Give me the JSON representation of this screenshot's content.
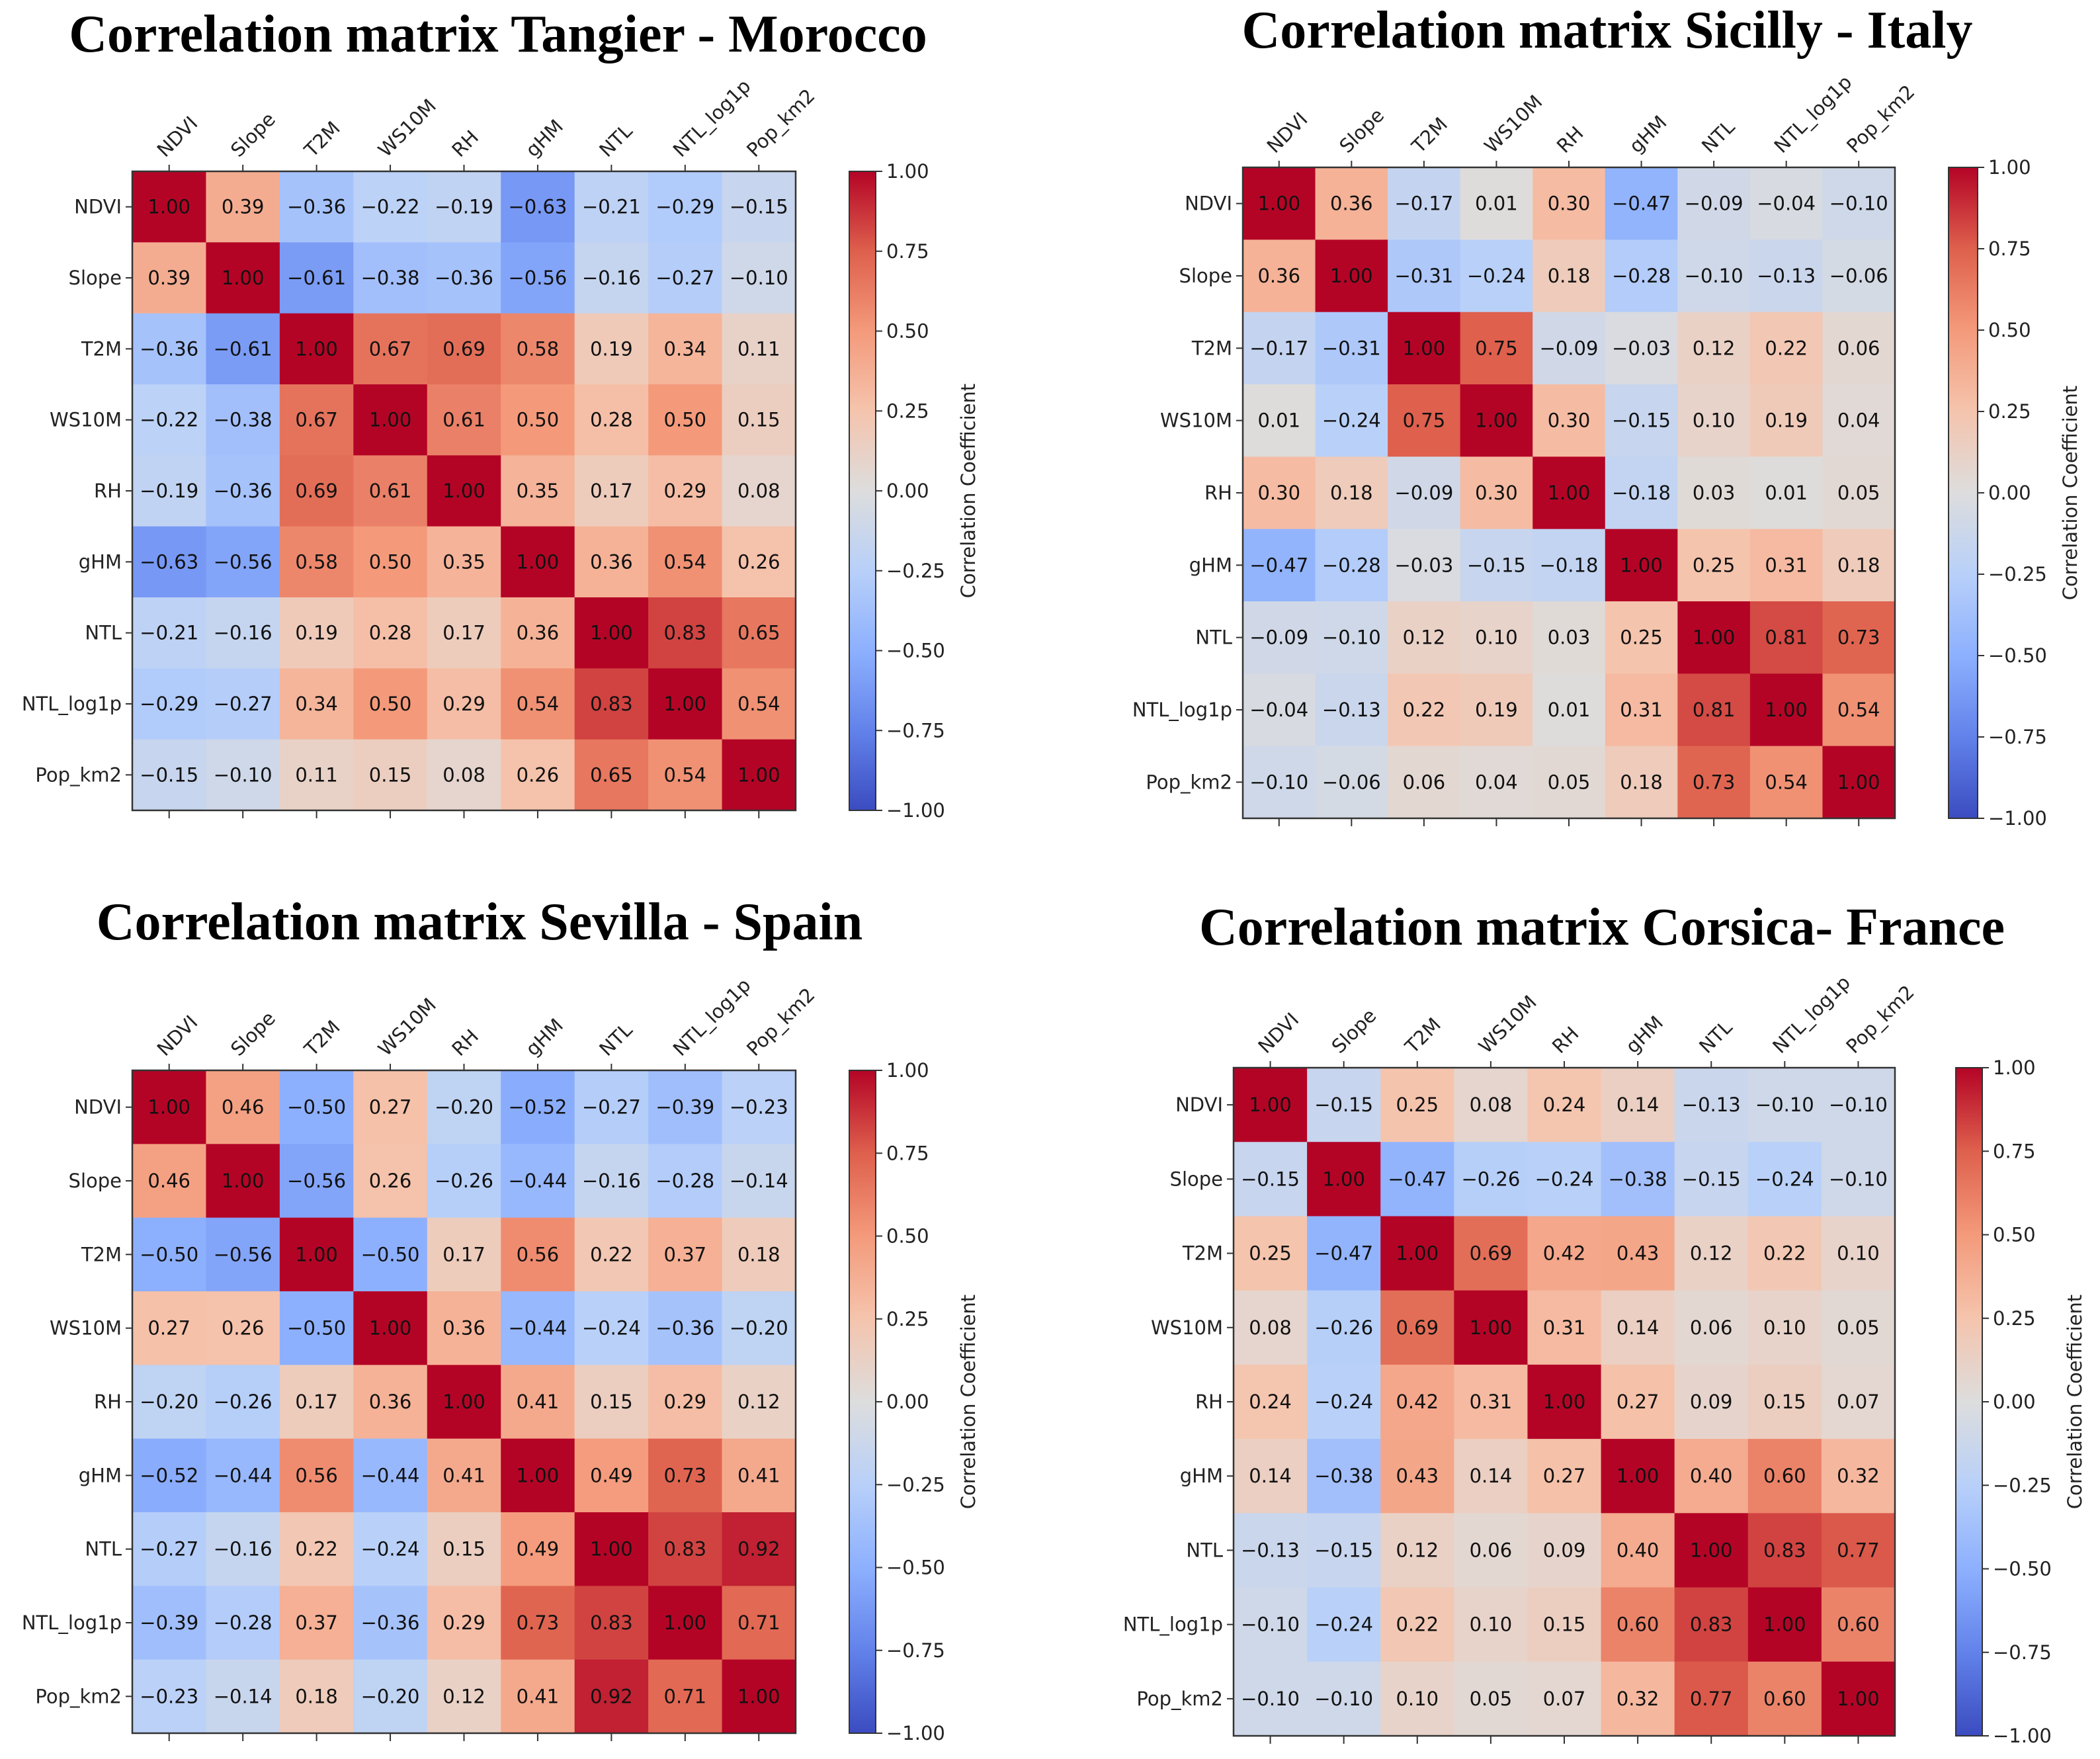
{
  "chart_data": [
    {
      "type": "heatmap",
      "title": "Correlation matrix Tangier - Morocco",
      "labels": [
        "NDVI",
        "Slope",
        "T2M",
        "WS10M",
        "RH",
        "gHM",
        "NTL",
        "NTL_log1p",
        "Pop_km2"
      ],
      "values": [
        [
          1.0,
          0.39,
          -0.36,
          -0.22,
          -0.19,
          -0.63,
          -0.21,
          -0.29,
          -0.15
        ],
        [
          0.39,
          1.0,
          -0.61,
          -0.38,
          -0.36,
          -0.56,
          -0.16,
          -0.27,
          -0.1
        ],
        [
          -0.36,
          -0.61,
          1.0,
          0.67,
          0.69,
          0.58,
          0.19,
          0.34,
          0.11
        ],
        [
          -0.22,
          -0.38,
          0.67,
          1.0,
          0.61,
          0.5,
          0.28,
          0.5,
          0.15
        ],
        [
          -0.19,
          -0.36,
          0.69,
          0.61,
          1.0,
          0.35,
          0.17,
          0.29,
          0.08
        ],
        [
          -0.63,
          -0.56,
          0.58,
          0.5,
          0.35,
          1.0,
          0.36,
          0.54,
          0.26
        ],
        [
          -0.21,
          -0.16,
          0.19,
          0.28,
          0.17,
          0.36,
          1.0,
          0.83,
          0.65
        ],
        [
          -0.29,
          -0.27,
          0.34,
          0.5,
          0.29,
          0.54,
          0.83,
          1.0,
          0.54
        ],
        [
          -0.15,
          -0.1,
          0.11,
          0.15,
          0.08,
          0.26,
          0.65,
          0.54,
          1.0
        ]
      ],
      "colorbar": {
        "label": "Correlation Coefficient",
        "range": [
          -1,
          1
        ],
        "ticks": [
          "1.00",
          "0.75",
          "0.50",
          "0.25",
          "0.00",
          "−0.25",
          "−0.50",
          "−0.75",
          "−1.00"
        ]
      },
      "colormap": "coolwarm"
    },
    {
      "type": "heatmap",
      "title": "Correlation matrix Sicilly - Italy",
      "labels": [
        "NDVI",
        "Slope",
        "T2M",
        "WS10M",
        "RH",
        "gHM",
        "NTL",
        "NTL_log1p",
        "Pop_km2"
      ],
      "values": [
        [
          1.0,
          0.36,
          -0.17,
          0.01,
          0.3,
          -0.47,
          -0.09,
          -0.04,
          -0.1
        ],
        [
          0.36,
          1.0,
          -0.31,
          -0.24,
          0.18,
          -0.28,
          -0.1,
          -0.13,
          -0.06
        ],
        [
          -0.17,
          -0.31,
          1.0,
          0.75,
          -0.09,
          -0.03,
          0.12,
          0.22,
          0.06
        ],
        [
          0.01,
          -0.24,
          0.75,
          1.0,
          0.3,
          -0.15,
          0.1,
          0.19,
          0.04
        ],
        [
          0.3,
          0.18,
          -0.09,
          0.3,
          1.0,
          -0.18,
          0.03,
          0.01,
          0.05
        ],
        [
          -0.47,
          -0.28,
          -0.03,
          -0.15,
          -0.18,
          1.0,
          0.25,
          0.31,
          0.18
        ],
        [
          -0.09,
          -0.1,
          0.12,
          0.1,
          0.03,
          0.25,
          1.0,
          0.81,
          0.73
        ],
        [
          -0.04,
          -0.13,
          0.22,
          0.19,
          0.01,
          0.31,
          0.81,
          1.0,
          0.54
        ],
        [
          -0.1,
          -0.06,
          0.06,
          0.04,
          0.05,
          0.18,
          0.73,
          0.54,
          1.0
        ]
      ],
      "colorbar": {
        "label": "Correlation Coefficient",
        "range": [
          -1,
          1
        ],
        "ticks": [
          "1.00",
          "0.75",
          "0.50",
          "0.25",
          "0.00",
          "−0.25",
          "−0.50",
          "−0.75",
          "−1.00"
        ]
      },
      "colormap": "coolwarm"
    },
    {
      "type": "heatmap",
      "title": "Correlation matrix Sevilla - Spain",
      "labels": [
        "NDVI",
        "Slope",
        "T2M",
        "WS10M",
        "RH",
        "gHM",
        "NTL",
        "NTL_log1p",
        "Pop_km2"
      ],
      "values": [
        [
          1.0,
          0.46,
          -0.5,
          0.27,
          -0.2,
          -0.52,
          -0.27,
          -0.39,
          -0.23
        ],
        [
          0.46,
          1.0,
          -0.56,
          0.26,
          -0.26,
          -0.44,
          -0.16,
          -0.28,
          -0.14
        ],
        [
          -0.5,
          -0.56,
          1.0,
          -0.5,
          0.17,
          0.56,
          0.22,
          0.37,
          0.18
        ],
        [
          0.27,
          0.26,
          -0.5,
          1.0,
          0.36,
          -0.44,
          -0.24,
          -0.36,
          -0.2
        ],
        [
          -0.2,
          -0.26,
          0.17,
          0.36,
          1.0,
          0.41,
          0.15,
          0.29,
          0.12
        ],
        [
          -0.52,
          -0.44,
          0.56,
          -0.44,
          0.41,
          1.0,
          0.49,
          0.73,
          0.41
        ],
        [
          -0.27,
          -0.16,
          0.22,
          -0.24,
          0.15,
          0.49,
          1.0,
          0.83,
          0.92
        ],
        [
          -0.39,
          -0.28,
          0.37,
          -0.36,
          0.29,
          0.73,
          0.83,
          1.0,
          0.71
        ],
        [
          -0.23,
          -0.14,
          0.18,
          -0.2,
          0.12,
          0.41,
          0.92,
          0.71,
          1.0
        ]
      ],
      "colorbar": {
        "label": "Correlation Coefficient",
        "range": [
          -1,
          1
        ],
        "ticks": [
          "1.00",
          "0.75",
          "0.50",
          "0.25",
          "0.00",
          "−0.25",
          "−0.50",
          "−0.75",
          "−1.00"
        ]
      },
      "colormap": "coolwarm"
    },
    {
      "type": "heatmap",
      "title": "Correlation matrix Corsica- France",
      "labels": [
        "NDVI",
        "Slope",
        "T2M",
        "WS10M",
        "RH",
        "gHM",
        "NTL",
        "NTL_log1p",
        "Pop_km2"
      ],
      "values": [
        [
          1.0,
          -0.15,
          0.25,
          0.08,
          0.24,
          0.14,
          -0.13,
          -0.1,
          -0.1
        ],
        [
          -0.15,
          1.0,
          -0.47,
          -0.26,
          -0.24,
          -0.38,
          -0.15,
          -0.24,
          -0.1
        ],
        [
          0.25,
          -0.47,
          1.0,
          0.69,
          0.42,
          0.43,
          0.12,
          0.22,
          0.1
        ],
        [
          0.08,
          -0.26,
          0.69,
          1.0,
          0.31,
          0.14,
          0.06,
          0.1,
          0.05
        ],
        [
          0.24,
          -0.24,
          0.42,
          0.31,
          1.0,
          0.27,
          0.09,
          0.15,
          0.07
        ],
        [
          0.14,
          -0.38,
          0.43,
          0.14,
          0.27,
          1.0,
          0.4,
          0.6,
          0.32
        ],
        [
          -0.13,
          -0.15,
          0.12,
          0.06,
          0.09,
          0.4,
          1.0,
          0.83,
          0.77
        ],
        [
          -0.1,
          -0.24,
          0.22,
          0.1,
          0.15,
          0.6,
          0.83,
          1.0,
          0.6
        ],
        [
          -0.1,
          -0.1,
          0.1,
          0.05,
          0.07,
          0.32,
          0.77,
          0.6,
          1.0
        ]
      ],
      "colorbar": {
        "label": "Correlation Coefficient",
        "range": [
          -1,
          1
        ],
        "ticks": [
          "1.00",
          "0.75",
          "0.50",
          "0.25",
          "0.00",
          "−0.25",
          "−0.50",
          "−0.75",
          "−1.00"
        ]
      },
      "colormap": "coolwarm"
    }
  ]
}
